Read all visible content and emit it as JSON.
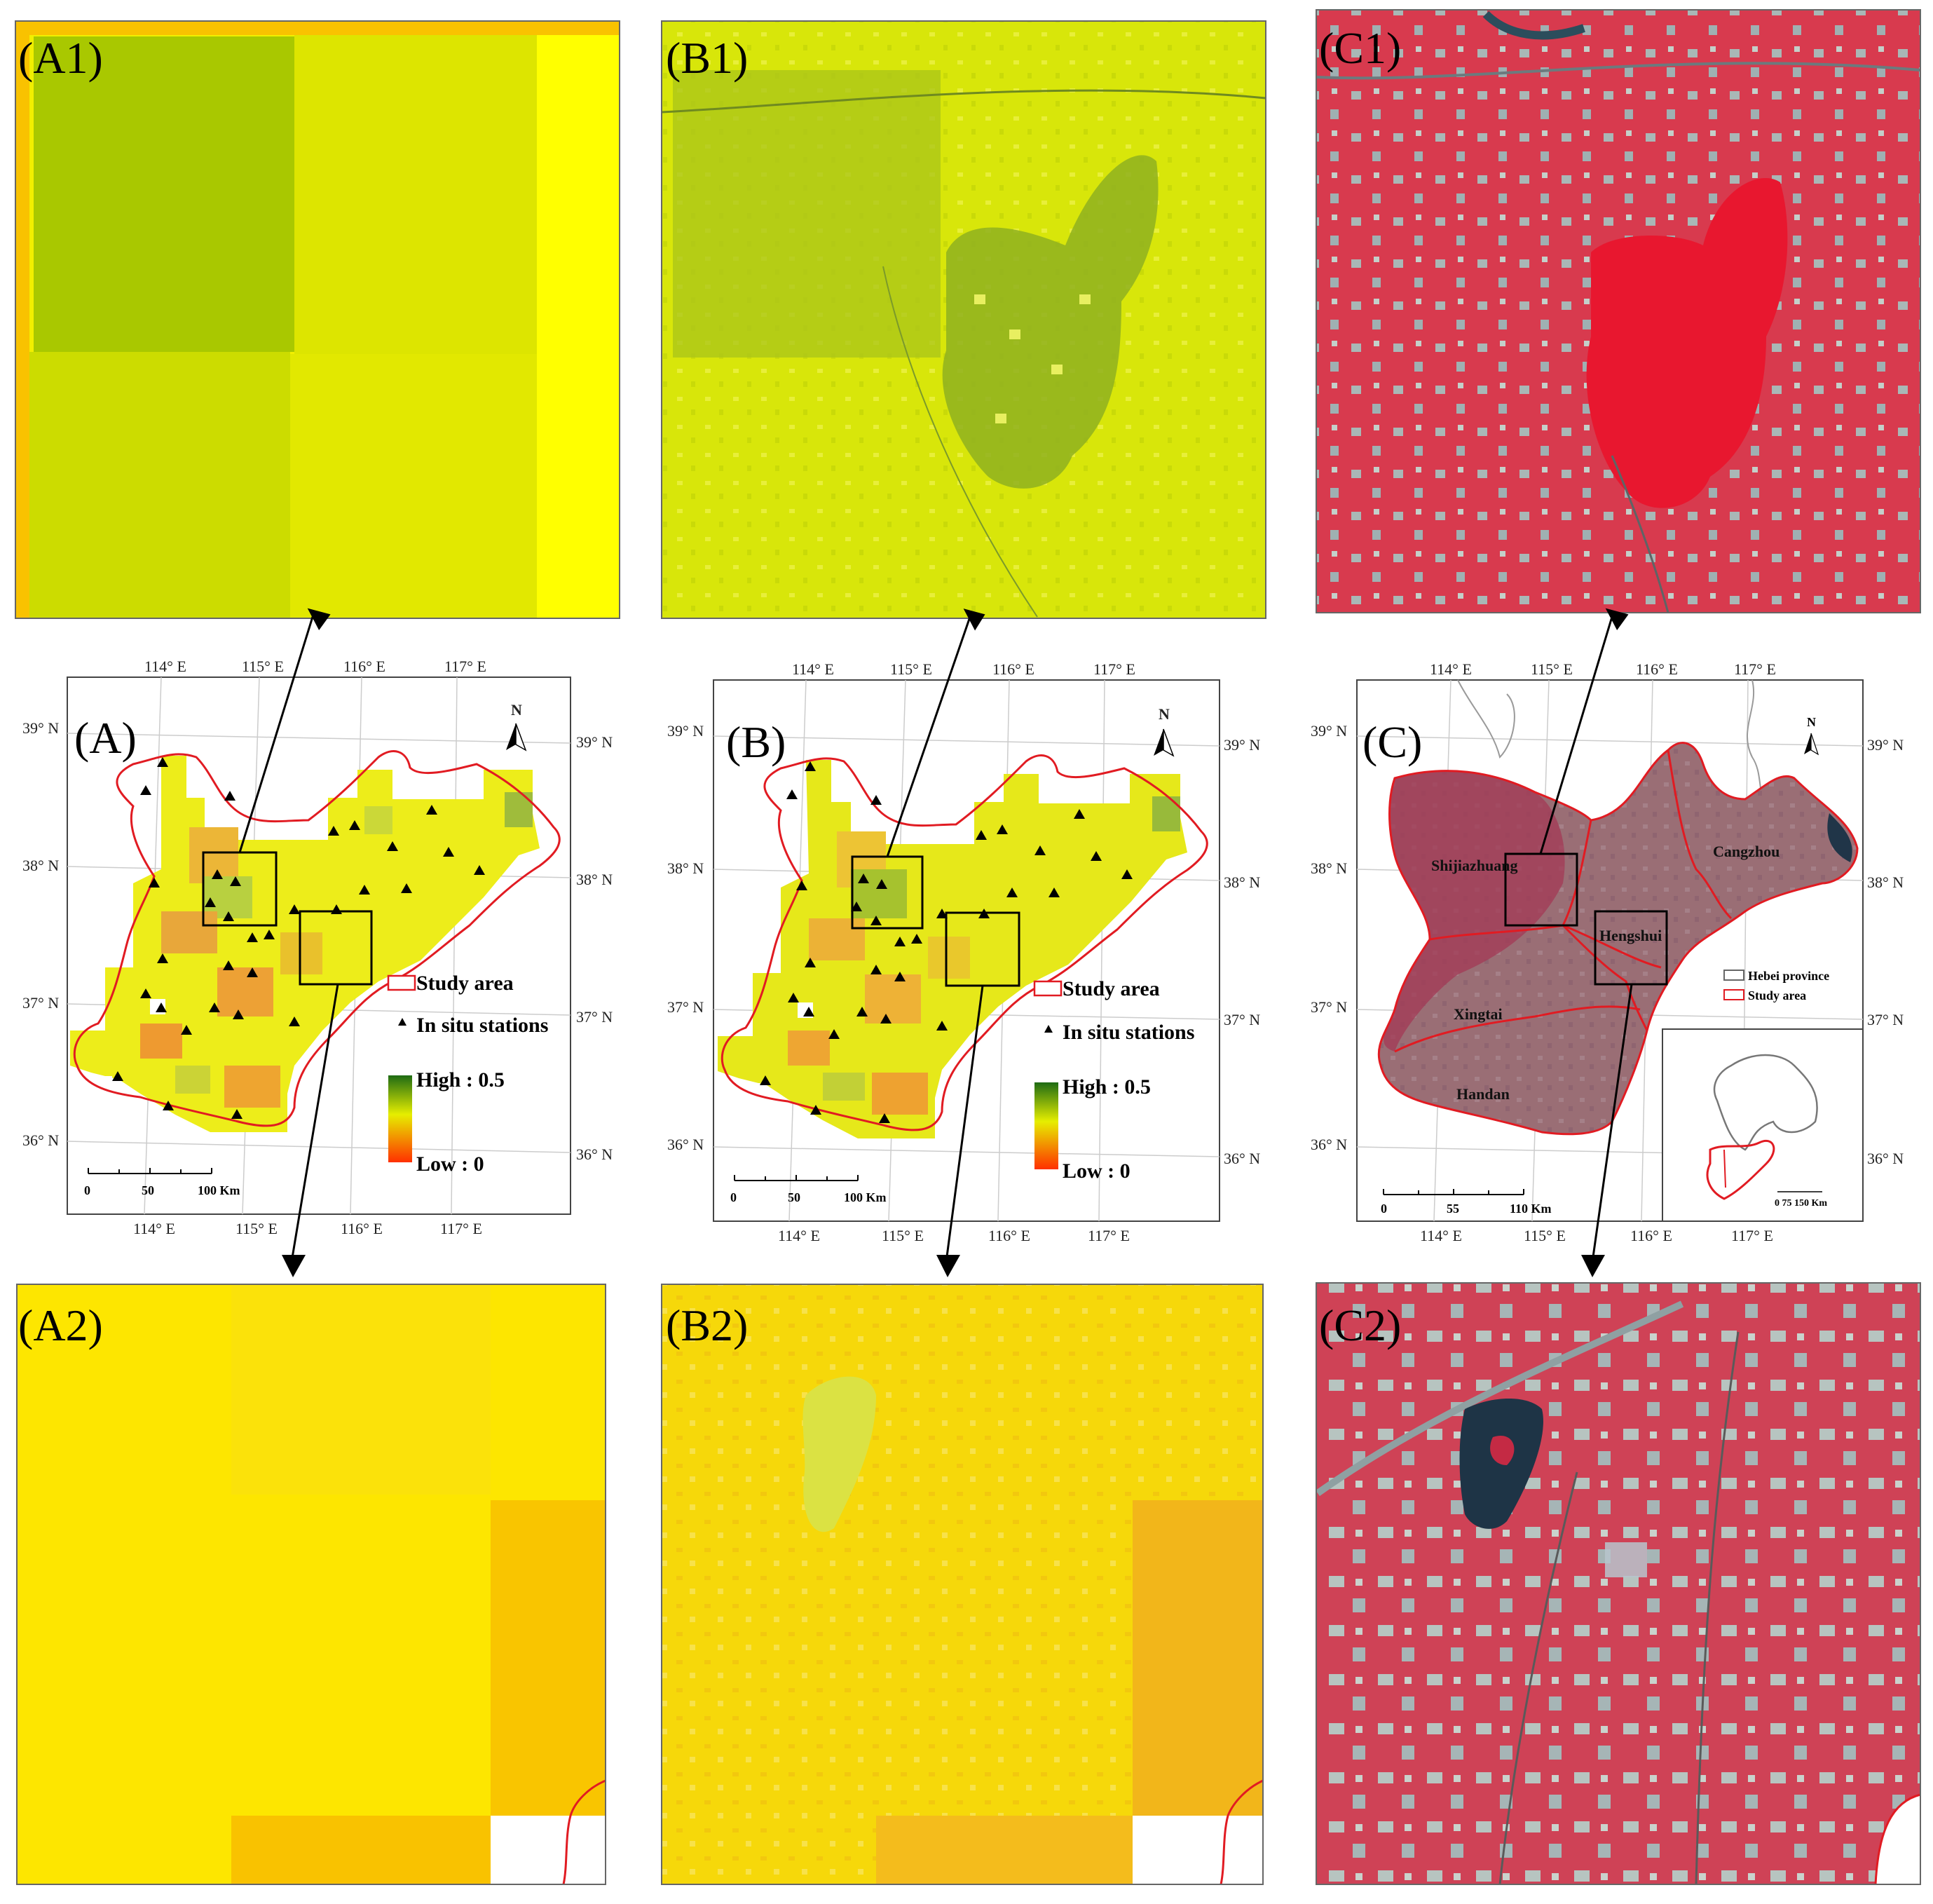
{
  "panels": {
    "a1": "(A1)",
    "b1": "(B1)",
    "c1": "(C1)",
    "a": "(A)",
    "b": "(B)",
    "c": "(C)",
    "a2": "(A2)",
    "b2": "(B2)",
    "c2": "(C2)"
  },
  "axes": {
    "lon": [
      "114° E",
      "115° E",
      "116° E",
      "117° E"
    ],
    "lat": [
      "39° N",
      "38° N",
      "37° N",
      "36° N"
    ]
  },
  "north": "N",
  "legend": {
    "study_area": "Study area",
    "stations": "In situ stations",
    "high": "High : 0.5",
    "low": "Low : 0"
  },
  "legend_c": {
    "hebei": "Hebei province",
    "study_area": "Study area"
  },
  "scale_ab": {
    "t0": "0",
    "t1": "50",
    "t2": "100 Km"
  },
  "scale_c": {
    "t0": "0",
    "t1": "55",
    "t2": "110 Km"
  },
  "inset_scale": "0  75 150 Km",
  "cities": {
    "shijiazhuang": "Shijiazhuang",
    "cangzhou": "Cangzhou",
    "hengshui": "Hengshui",
    "xingtai": "Xingtai",
    "handan": "Handan"
  },
  "colors": {
    "high": "#1e6b14",
    "mid": "#e6ee00",
    "low": "#ff3000",
    "study": "#e11b22",
    "false_color": "#d83a4e"
  }
}
